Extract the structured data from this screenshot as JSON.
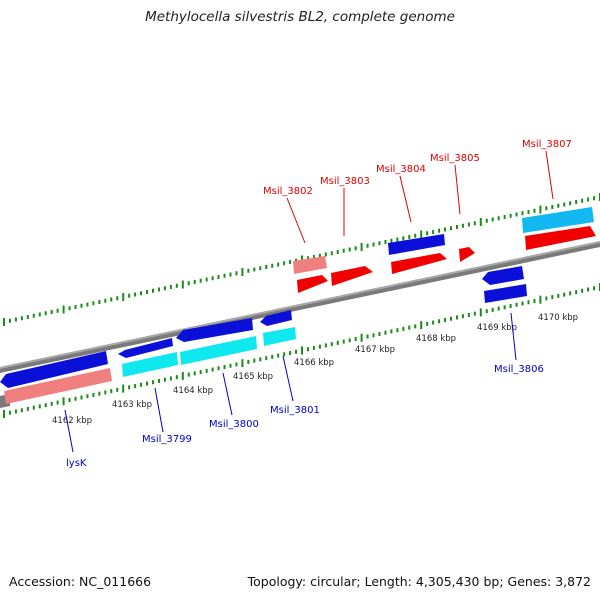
{
  "title": "Methylocella silvestris BL2, complete genome",
  "footer": {
    "accession": "Accession: NC_011666",
    "summary": "Topology: circular; Length: 4,305,430 bp; Genes: 3,872"
  },
  "colors": {
    "top_label": "#e00000",
    "bottom_label": "#0000cc",
    "dark_blue": "#0a10d8",
    "light_blue": "#12b8f0",
    "cyan": "#10e8f0",
    "red": "#f00000",
    "pink": "#f08080",
    "tick": "#1a8a1a",
    "backbone": "#808080"
  },
  "kbp_labels": [
    "4162 kbp",
    "4163 kbp",
    "4164 kbp",
    "4165 kbp",
    "4166 kbp",
    "4167 kbp",
    "4168 kbp",
    "4169 kbp",
    "4170 kbp"
  ],
  "genes_top": [
    "Msil_3802",
    "Msil_3803",
    "Msil_3804",
    "Msil_3805",
    "Msil_3807"
  ],
  "genes_bottom": [
    "lysK",
    "Msil_3799",
    "Msil_3800",
    "Msil_3801",
    "Msil_3806"
  ]
}
